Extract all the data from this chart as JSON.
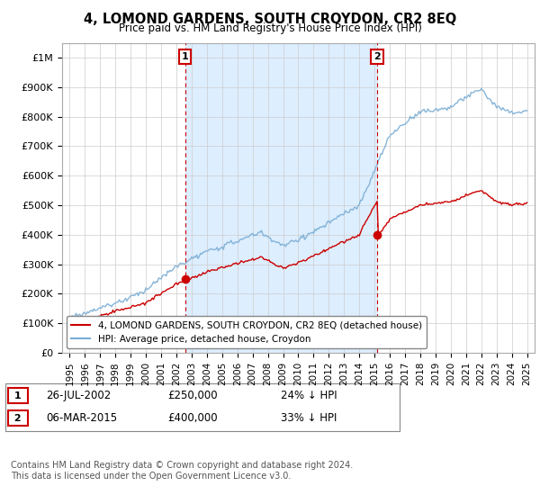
{
  "title": "4, LOMOND GARDENS, SOUTH CROYDON, CR2 8EQ",
  "subtitle": "Price paid vs. HM Land Registry's House Price Index (HPI)",
  "ylim": [
    0,
    1050000
  ],
  "yticks": [
    0,
    100000,
    200000,
    300000,
    400000,
    500000,
    600000,
    700000,
    800000,
    900000,
    1000000
  ],
  "ytick_labels": [
    "£0",
    "£100K",
    "£200K",
    "£300K",
    "£400K",
    "£500K",
    "£600K",
    "£700K",
    "£800K",
    "£900K",
    "£1M"
  ],
  "hpi_color": "#7aadd4",
  "price_color": "#cc0000",
  "shading_color": "#ddeeff",
  "sale1_date": 2002.57,
  "sale1_price": 250000,
  "sale2_date": 2015.17,
  "sale2_price": 400000,
  "legend_label1": "4, LOMOND GARDENS, SOUTH CROYDON, CR2 8EQ (detached house)",
  "legend_label2": "HPI: Average price, detached house, Croydon",
  "annotation1_label": "1",
  "annotation1_date": "26-JUL-2002",
  "annotation1_price": "£250,000",
  "annotation1_hpi": "24% ↓ HPI",
  "annotation2_label": "2",
  "annotation2_date": "06-MAR-2015",
  "annotation2_price": "£400,000",
  "annotation2_hpi": "33% ↓ HPI",
  "footer": "Contains HM Land Registry data © Crown copyright and database right 2024.\nThis data is licensed under the Open Government Licence v3.0.",
  "background_color": "#ffffff",
  "grid_color": "#cccccc"
}
